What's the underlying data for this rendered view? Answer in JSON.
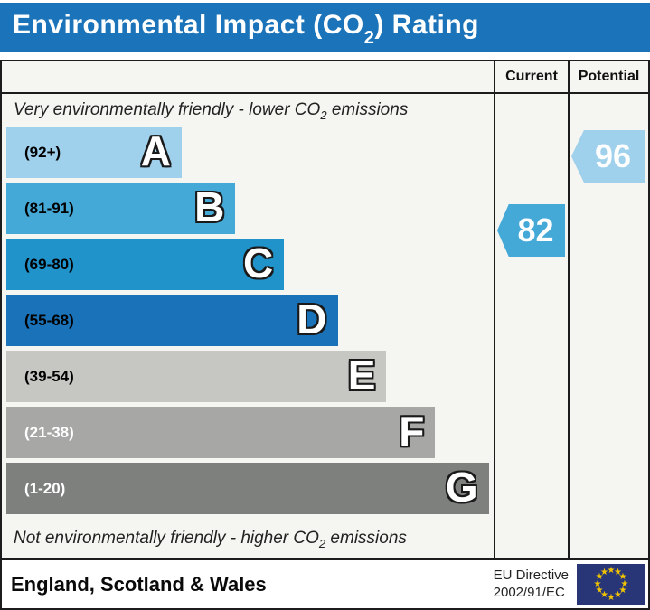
{
  "title": {
    "prefix": "Environmental Impact (CO",
    "sub": "2",
    "suffix": ") Rating",
    "bar_color": "#1b74b9"
  },
  "header": {
    "current": "Current",
    "potential": "Potential"
  },
  "notes": {
    "top": {
      "prefix": "Very environmentally friendly - lower CO",
      "sub": "2",
      "suffix": " emissions"
    },
    "bottom": {
      "prefix": "Not environmentally friendly - higher CO",
      "sub": "2",
      "suffix": " emissions"
    }
  },
  "footer": {
    "region": "England, Scotland & Wales",
    "directive_line1": "EU Directive",
    "directive_line2": "2002/91/EC",
    "eu_flag": {
      "bg_color": "#283577",
      "star_color": "#f2c500",
      "star_count": 12
    }
  },
  "chart_data": {
    "type": "bar",
    "title": "Environmental Impact (CO2) Rating",
    "categories": [
      "A",
      "B",
      "C",
      "D",
      "E",
      "F",
      "G"
    ],
    "bands": [
      {
        "letter": "A",
        "range_label": "(92+)",
        "score_min": 92,
        "score_max": 100,
        "color": "#9fd0ec",
        "label_color": "#000000",
        "width_pct": 36
      },
      {
        "letter": "B",
        "range_label": "(81-91)",
        "score_min": 81,
        "score_max": 91,
        "color": "#45a9d8",
        "label_color": "#000000",
        "width_pct": 47
      },
      {
        "letter": "C",
        "range_label": "(69-80)",
        "score_min": 69,
        "score_max": 80,
        "color": "#2093cb",
        "label_color": "#000000",
        "width_pct": 57
      },
      {
        "letter": "D",
        "range_label": "(55-68)",
        "score_min": 55,
        "score_max": 68,
        "color": "#1a72b8",
        "label_color": "#000000",
        "width_pct": 68
      },
      {
        "letter": "E",
        "range_label": "(39-54)",
        "score_min": 39,
        "score_max": 54,
        "color": "#c6c7c3",
        "label_color": "#000000",
        "width_pct": 78
      },
      {
        "letter": "F",
        "range_label": "(21-38)",
        "score_min": 21,
        "score_max": 38,
        "color": "#a7a8a5",
        "label_color": "#ffffff",
        "width_pct": 88
      },
      {
        "letter": "G",
        "range_label": "(1-20)",
        "score_min": 1,
        "score_max": 20,
        "color": "#7d807d",
        "label_color": "#ffffff",
        "width_pct": 99
      }
    ],
    "current": {
      "value": 82,
      "band": "B",
      "color": "#45a9d8"
    },
    "potential": {
      "value": 96,
      "band": "A",
      "color": "#9fd0ec"
    }
  }
}
